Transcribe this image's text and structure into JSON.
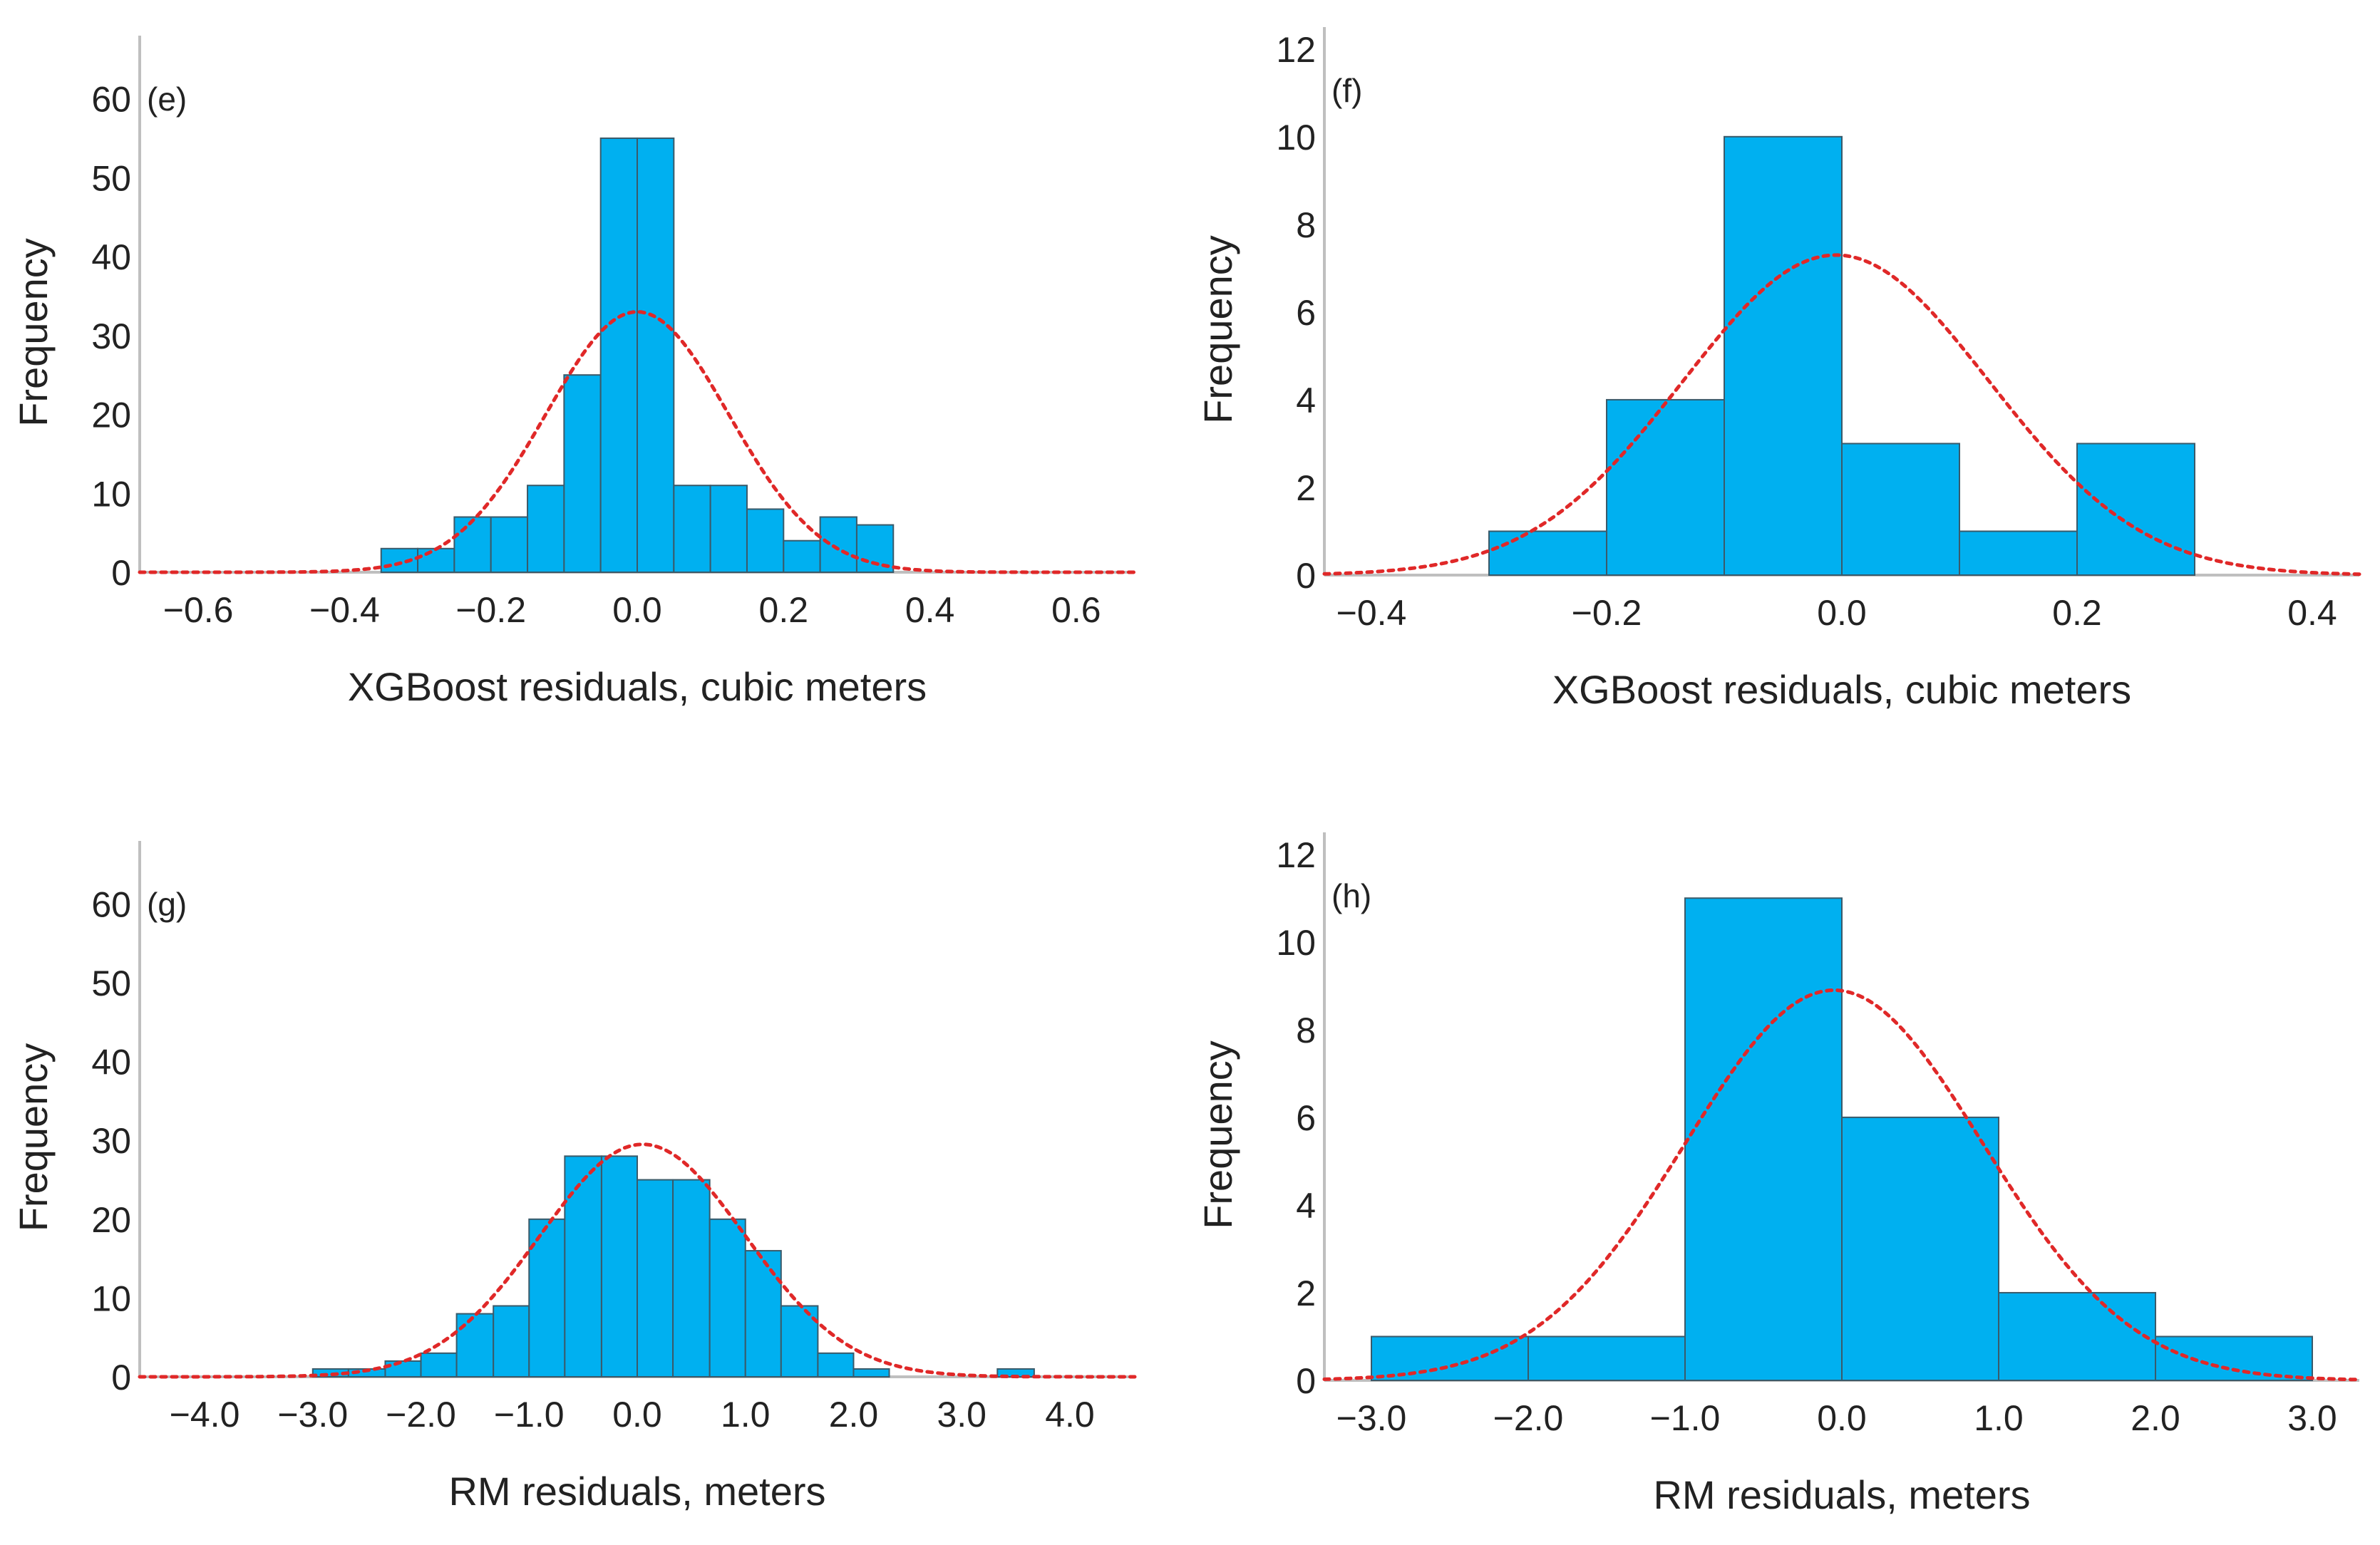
{
  "colors": {
    "bar": "#00b0f0",
    "bar_edge": "#3a5a6a",
    "curve": "#e02828",
    "axis": "#bfbfbf",
    "text": "#222222"
  },
  "chart_data": [
    {
      "id": "e",
      "panel_label": "(e)",
      "type": "bar",
      "title": "",
      "xlabel": "XGBoost residuals, cubic meters",
      "ylabel": "Frequency",
      "xlim": [
        -0.68,
        0.68
      ],
      "ylim": [
        0,
        68
      ],
      "xticks": [
        -0.6,
        -0.4,
        -0.2,
        0.0,
        0.2,
        0.4,
        0.6
      ],
      "xtick_labels": [
        "−0.6",
        "−0.4",
        "−0.2",
        "0.0",
        "0.2",
        "0.4",
        "0.6"
      ],
      "yticks": [
        0,
        10,
        20,
        30,
        40,
        50,
        60
      ],
      "ytick_labels": [
        "0",
        "10",
        "20",
        "30",
        "40",
        "50",
        "60"
      ],
      "bin_edges": [
        -0.35,
        -0.3,
        -0.25,
        -0.2,
        -0.15,
        -0.1,
        -0.05,
        0.0,
        0.05,
        0.1,
        0.15,
        0.2,
        0.25,
        0.3,
        0.35
      ],
      "values": [
        3,
        3,
        7,
        7,
        11,
        25,
        55,
        55,
        11,
        11,
        8,
        4,
        7,
        6
      ],
      "normal_curve": {
        "mean": 0.0,
        "peak": 33,
        "sd": 0.125
      },
      "grid": false
    },
    {
      "id": "f",
      "panel_label": "(f)",
      "type": "bar",
      "title": "",
      "xlabel": "XGBoost residuals, cubic meters",
      "ylabel": "Frequency",
      "xlim": [
        -0.44,
        0.44
      ],
      "ylim": [
        0,
        12.5
      ],
      "xticks": [
        -0.4,
        -0.2,
        0.0,
        0.2,
        0.4
      ],
      "xtick_labels": [
        "−0.4",
        "−0.2",
        "0.0",
        "0.2",
        "0.4"
      ],
      "yticks": [
        0,
        2,
        4,
        6,
        8,
        10,
        12
      ],
      "ytick_labels": [
        "0",
        "2",
        "4",
        "6",
        "8",
        "10",
        "12"
      ],
      "bin_edges": [
        -0.3,
        -0.2,
        -0.1,
        0.0,
        0.1,
        0.2,
        0.3
      ],
      "values": [
        1,
        4,
        10,
        3,
        1,
        3
      ],
      "normal_curve": {
        "mean": -0.005,
        "peak": 7.3,
        "sd": 0.13
      },
      "grid": false
    },
    {
      "id": "g",
      "panel_label": "(g)",
      "type": "bar",
      "title": "",
      "xlabel": "RM residuals, meters",
      "ylabel": "Frequency",
      "xlim": [
        -4.6,
        4.6
      ],
      "ylim": [
        0,
        68
      ],
      "xticks": [
        -4.0,
        -3.0,
        -2.0,
        -1.0,
        0.0,
        1.0,
        2.0,
        3.0,
        4.0
      ],
      "xtick_labels": [
        "−4.0",
        "−3.0",
        "−2.0",
        "−1.0",
        "0.0",
        "1.0",
        "2.0",
        "3.0",
        "4.0"
      ],
      "yticks": [
        0,
        10,
        20,
        30,
        40,
        50,
        60
      ],
      "ytick_labels": [
        "0",
        "10",
        "20",
        "30",
        "40",
        "50",
        "60"
      ],
      "bin_edges": [
        -3.0,
        -2.67,
        -2.33,
        -2.0,
        -1.67,
        -1.33,
        -1.0,
        -0.67,
        -0.33,
        0.0,
        0.33,
        0.67,
        1.0,
        1.33,
        1.67,
        2.0,
        2.33,
        3.33,
        3.67
      ],
      "values": [
        1,
        1,
        2,
        3,
        8,
        9,
        20,
        28,
        28,
        25,
        25,
        20,
        16,
        9,
        3,
        1,
        0,
        1
      ],
      "normal_curve": {
        "mean": 0.05,
        "peak": 29.5,
        "sd": 0.95
      },
      "grid": false
    },
    {
      "id": "h",
      "panel_label": "(h)",
      "type": "bar",
      "title": "",
      "xlabel": "RM residuals, meters",
      "ylabel": "Frequency",
      "xlim": [
        -3.3,
        3.3
      ],
      "ylim": [
        0,
        12.5
      ],
      "xticks": [
        -3.0,
        -2.0,
        -1.0,
        0.0,
        1.0,
        2.0,
        3.0
      ],
      "xtick_labels": [
        "−3.0",
        "−2.0",
        "−1.0",
        "0.0",
        "1.0",
        "2.0",
        "3.0"
      ],
      "yticks": [
        0,
        2,
        4,
        6,
        8,
        10,
        12
      ],
      "ytick_labels": [
        "0",
        "2",
        "4",
        "6",
        "8",
        "10",
        "12"
      ],
      "bin_edges": [
        -3.0,
        -2.0,
        -1.0,
        0.0,
        1.0,
        2.0,
        3.0
      ],
      "values": [
        1,
        1,
        11,
        6,
        2,
        1
      ],
      "normal_curve": {
        "mean": -0.05,
        "peak": 8.9,
        "sd": 0.95
      },
      "grid": false
    }
  ]
}
